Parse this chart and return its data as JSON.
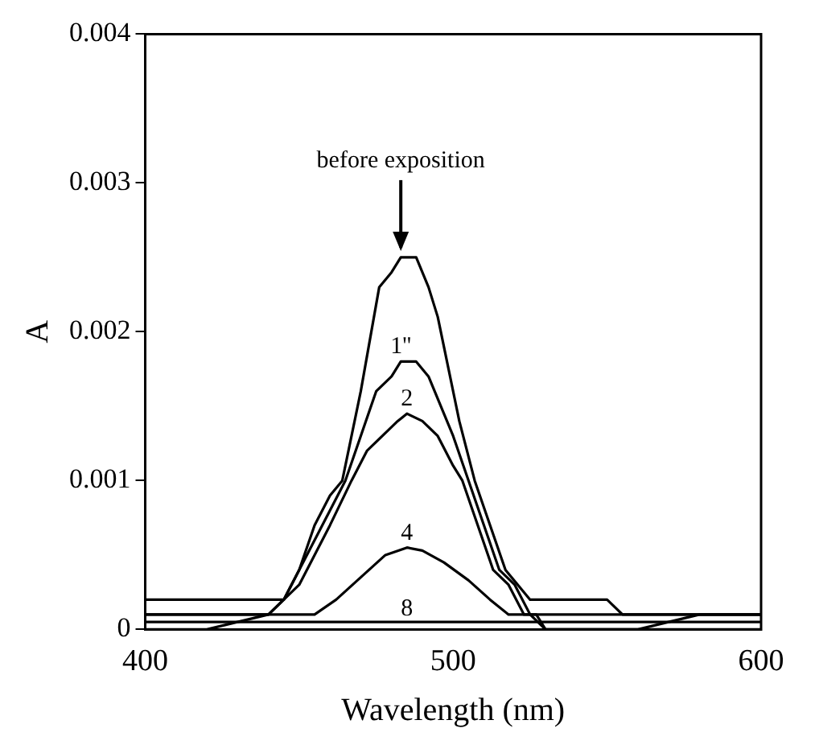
{
  "chart_data": {
    "type": "line",
    "xlabel": "Wavelength (nm)",
    "ylabel": "A",
    "xlim": [
      400,
      600
    ],
    "xticks": [
      400,
      500,
      600
    ],
    "ylim": [
      0,
      0.004
    ],
    "yticks": [
      0,
      0.001,
      0.002,
      0.003,
      0.004
    ],
    "grid": false,
    "legend": false,
    "marker": "none",
    "line_style": "solid",
    "series": [
      {
        "name": "before exposition",
        "color": "#000000",
        "x": [
          400,
          425,
          426,
          443,
          445,
          450,
          455,
          460,
          464,
          470,
          476,
          480,
          483,
          488,
          492,
          495,
          498,
          502,
          507,
          512,
          517,
          521,
          525,
          530,
          550,
          555,
          575,
          580,
          590,
          600
        ],
        "values": [
          0.0002,
          0.0002,
          0.0002,
          0.0002,
          0.0002,
          0.0004,
          0.0007,
          0.0009,
          0.001,
          0.0016,
          0.0023,
          0.0024,
          0.0025,
          0.0025,
          0.0023,
          0.0021,
          0.0018,
          0.0014,
          0.001,
          0.0007,
          0.0004,
          0.0003,
          0.0002,
          0.0002,
          0.0002,
          0.0001,
          0.0001,
          0.0001,
          0.0001,
          0.0001
        ]
      },
      {
        "name": "1''",
        "color": "#000000",
        "x": [
          400,
          420,
          440,
          445,
          450,
          455,
          460,
          465,
          470,
          475,
          480,
          483,
          488,
          492,
          496,
          500,
          505,
          510,
          515,
          520,
          525,
          530,
          560,
          580,
          600
        ],
        "values": [
          0.0001,
          0.0001,
          0.0001,
          0.0002,
          0.0004,
          0.0006,
          0.0008,
          0.001,
          0.0013,
          0.0016,
          0.0017,
          0.0018,
          0.0018,
          0.0017,
          0.0015,
          0.0013,
          0.001,
          0.0007,
          0.0004,
          0.0003,
          0.0001,
          0.0001,
          0.0001,
          0.0001,
          0.0001
        ]
      },
      {
        "name": "2",
        "color": "#000000",
        "x": [
          400,
          420,
          440,
          445,
          450,
          455,
          460,
          467,
          472,
          477,
          482,
          485,
          490,
          495,
          500,
          503,
          508,
          513,
          518,
          523,
          527,
          530,
          560,
          580,
          600
        ],
        "values": [
          0,
          0,
          0.0001,
          0.0002,
          0.0003,
          0.0005,
          0.0007,
          0.001,
          0.0012,
          0.0013,
          0.0014,
          0.00145,
          0.0014,
          0.0013,
          0.0011,
          0.001,
          0.0007,
          0.0004,
          0.0003,
          0.0001,
          0.0001,
          0,
          0,
          0.0001,
          0.0001
        ]
      },
      {
        "name": "4",
        "color": "#000000",
        "x": [
          400,
          440,
          448,
          455,
          462,
          470,
          478,
          485,
          490,
          497,
          505,
          512,
          518,
          525,
          530,
          600
        ],
        "values": [
          0.0001,
          0.0001,
          0.0001,
          0.0001,
          0.0002,
          0.00035,
          0.0005,
          0.00055,
          0.00053,
          0.00045,
          0.00033,
          0.0002,
          0.0001,
          0.0001,
          0,
          0
        ]
      },
      {
        "name": "8",
        "color": "#000000",
        "x": [
          400,
          600
        ],
        "values": [
          5e-05,
          5e-05
        ]
      }
    ]
  }
}
